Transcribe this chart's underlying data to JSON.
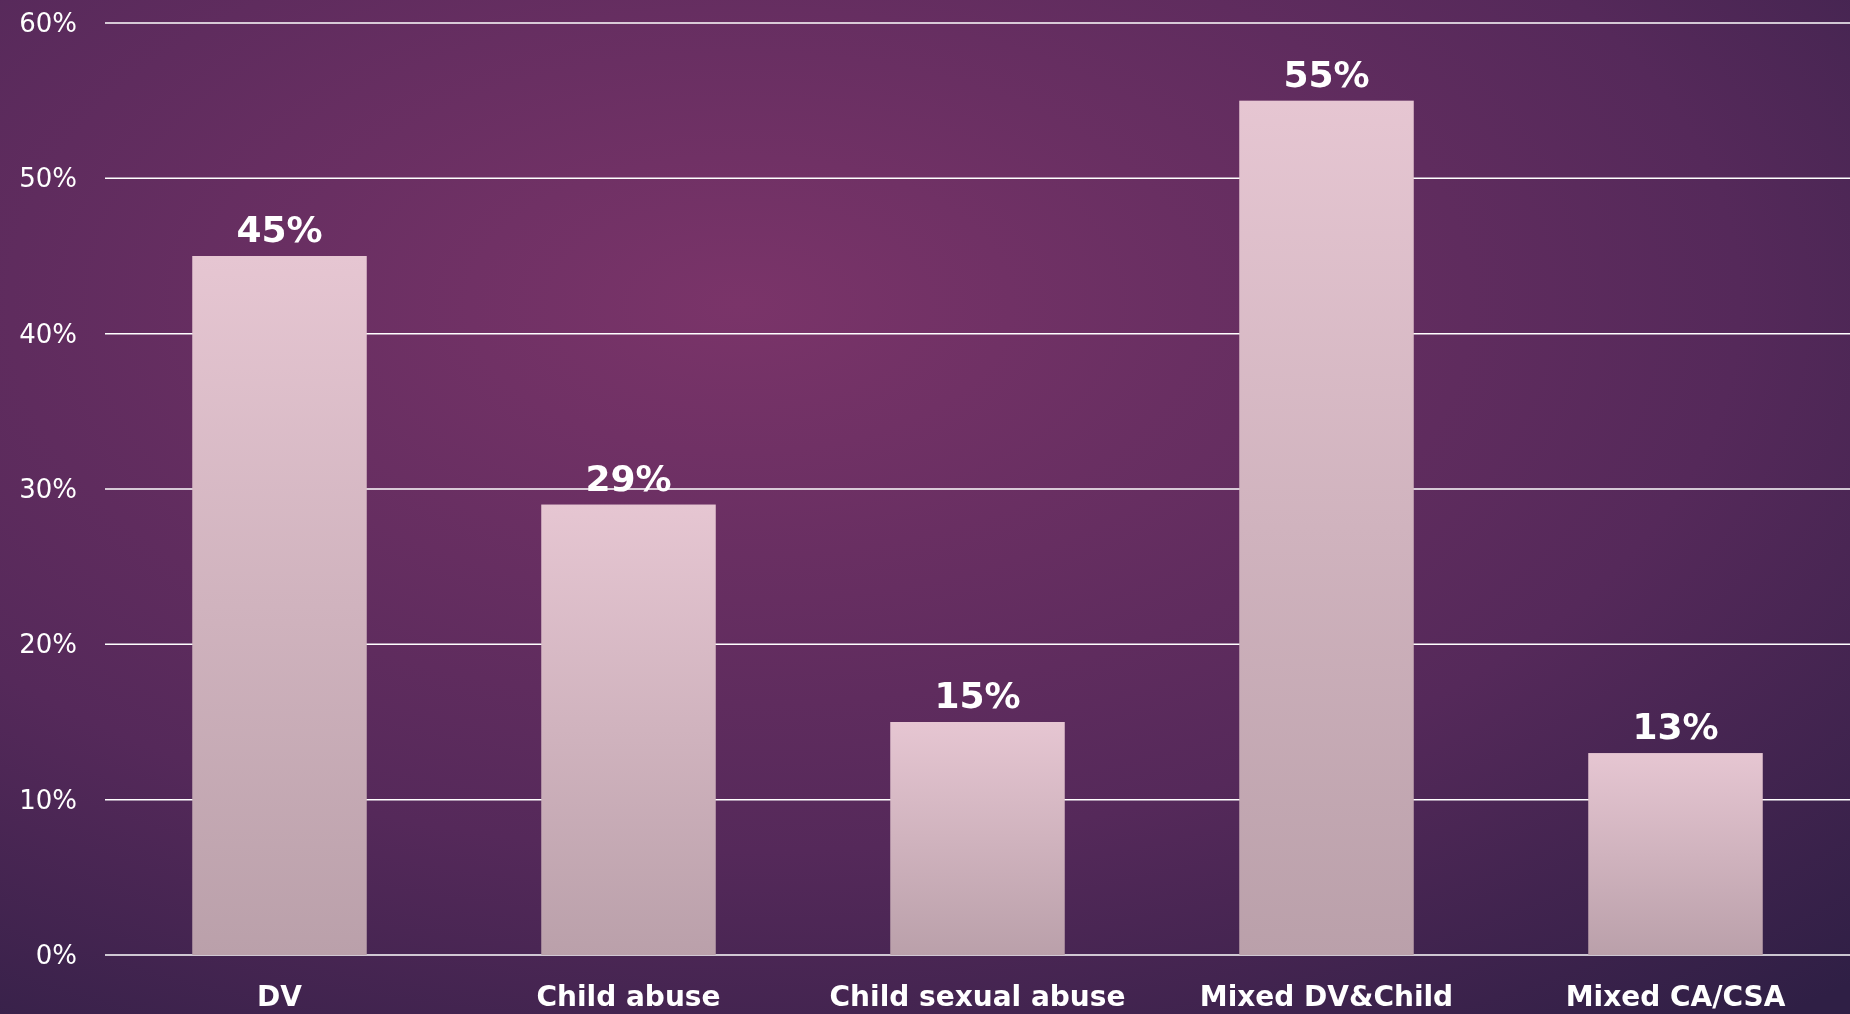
{
  "chart_data": {
    "type": "bar",
    "categories": [
      "DV",
      "Child abuse",
      "Child sexual abuse",
      "Mixed DV&Child",
      "Mixed CA/CSA"
    ],
    "values": [
      45,
      29,
      15,
      55,
      13
    ],
    "value_labels": [
      "45%",
      "29%",
      "15%",
      "55%",
      "13%"
    ],
    "color": "#e6c6d2",
    "ylim": [
      0,
      60
    ],
    "yticks": [
      {
        "value": 0,
        "label": "0%"
      },
      {
        "value": 10,
        "label": "10%"
      },
      {
        "value": 20,
        "label": "20%"
      },
      {
        "value": 30,
        "label": "30%"
      },
      {
        "value": 40,
        "label": "40%"
      },
      {
        "value": 50,
        "label": "50%"
      },
      {
        "value": 60,
        "label": "60%"
      }
    ],
    "grid": "y"
  }
}
